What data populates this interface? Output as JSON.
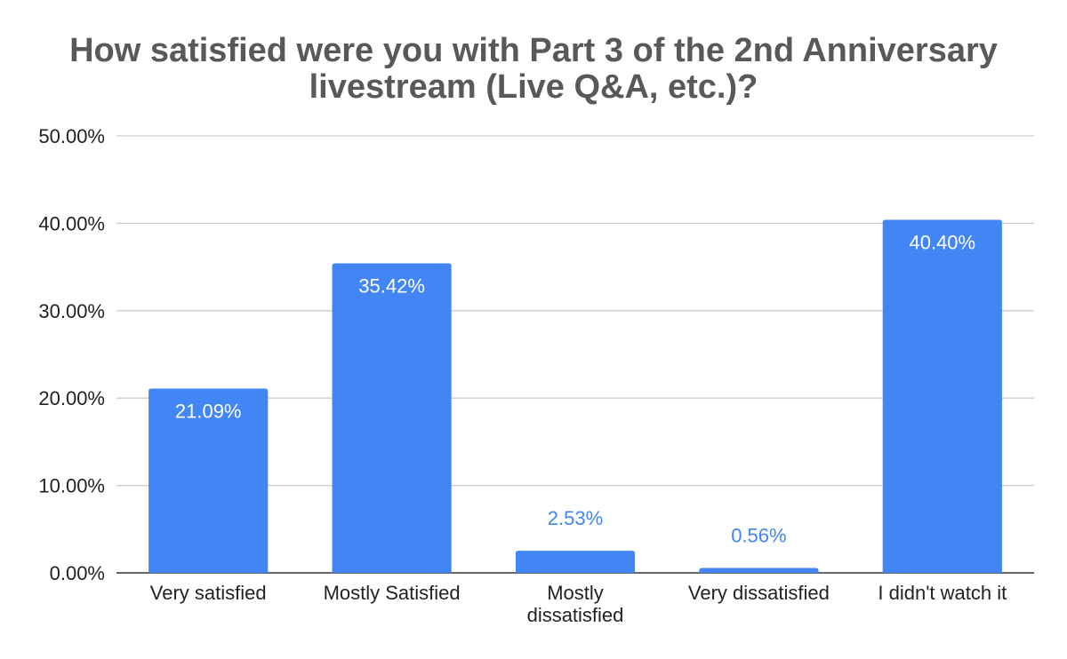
{
  "chart_data": {
    "type": "bar",
    "title": "How satisfied were you with Part 3 of the 2nd Anniversary livestream (Live Q&A, etc.)?",
    "title_lines": [
      "How satisfied were you with Part 3 of the 2nd Anniversary",
      "livestream (Live Q&A, etc.)?"
    ],
    "xlabel": "",
    "ylabel": "",
    "categories": [
      "Very satisfied",
      "Mostly Satisfied",
      "Mostly dissatisfied",
      "Very dissatisfied",
      "I didn't watch it"
    ],
    "category_lines": [
      [
        "Very satisfied"
      ],
      [
        "Mostly Satisfied"
      ],
      [
        "Mostly",
        "dissatisfied"
      ],
      [
        "Very dissatisfied"
      ],
      [
        "I didn't watch it"
      ]
    ],
    "values": [
      21.09,
      35.42,
      2.53,
      0.56,
      40.4
    ],
    "data_labels": [
      "21.09%",
      "35.42%",
      "2.53%",
      "0.56%",
      "40.40%"
    ],
    "ylim": [
      0,
      50
    ],
    "yticks": [
      0,
      10,
      20,
      30,
      40,
      50
    ],
    "ytick_labels": [
      "0.00%",
      "10.00%",
      "20.00%",
      "30.00%",
      "40.00%",
      "50.00%"
    ],
    "grid": true,
    "legend": "none",
    "bar_color": "#4285f4",
    "label_inside_color": "#ffffff",
    "label_outside_color": "#4285f4"
  }
}
